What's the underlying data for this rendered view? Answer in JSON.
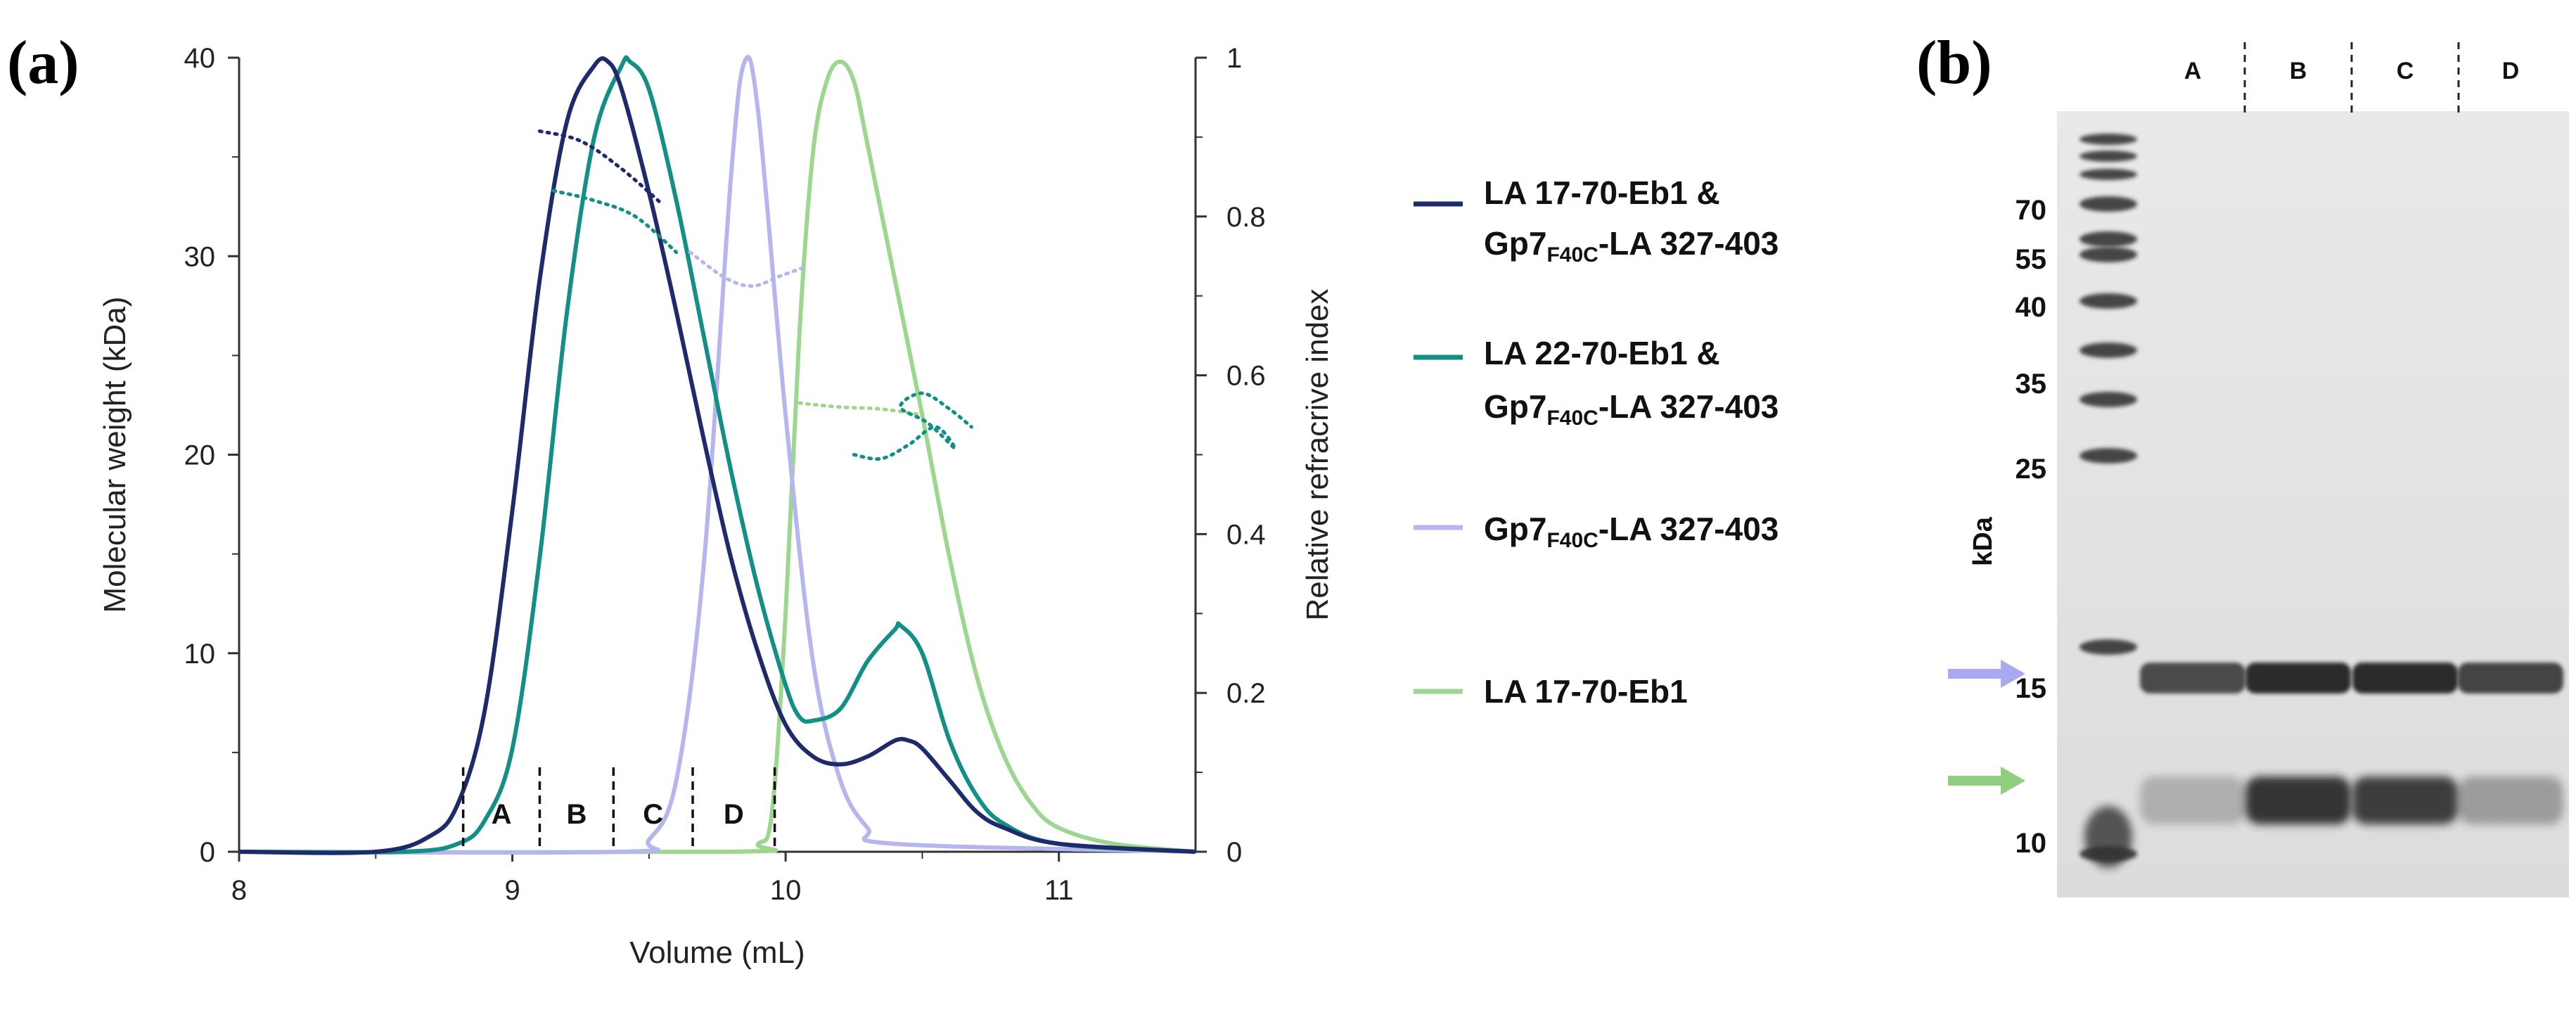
{
  "panel_a": {
    "label": "(a)"
  },
  "panel_b": {
    "label": "(b)"
  },
  "chart_data": [
    {
      "type": "line",
      "title": "",
      "xlabel": "Volume (mL)",
      "ylabel": "Molecular weight (kDa)",
      "y2label": "Relative refracrive index",
      "xlim": [
        8,
        11.5
      ],
      "ylim": [
        0,
        40
      ],
      "y2lim": [
        0,
        1
      ],
      "xticks": [
        "8",
        "9",
        "10",
        "11"
      ],
      "yticks": [
        "0",
        "10",
        "20",
        "30",
        "40"
      ],
      "y2ticks": [
        "0",
        "0.2",
        "0.4",
        "0.6",
        "0.8",
        "1"
      ],
      "fractions": [
        {
          "label": "A",
          "from": 8.82,
          "to": 9.1
        },
        {
          "label": "B",
          "from": 9.1,
          "to": 9.37
        },
        {
          "label": "C",
          "from": 9.37,
          "to": 9.66
        },
        {
          "label": "D",
          "from": 9.66,
          "to": 9.96
        }
      ],
      "series": [
        {
          "name": "LA 17-70-Eb1 & Gp7F40C-LA 327-403",
          "legend_main": "LA 17-70-Eb1 &",
          "legend_prefix": "Gp7",
          "legend_sub": "F40C",
          "legend_suffix": "-LA 327-403",
          "color": "#1f2a6b",
          "ri_points": [
            [
              8,
              0
            ],
            [
              8.5,
              0
            ],
            [
              8.7,
              0.02
            ],
            [
              8.8,
              0.06
            ],
            [
              8.9,
              0.18
            ],
            [
              9.0,
              0.43
            ],
            [
              9.1,
              0.72
            ],
            [
              9.2,
              0.92
            ],
            [
              9.3,
              0.99
            ],
            [
              9.35,
              0.995
            ],
            [
              9.4,
              0.96
            ],
            [
              9.5,
              0.83
            ],
            [
              9.6,
              0.68
            ],
            [
              9.7,
              0.52
            ],
            [
              9.8,
              0.37
            ],
            [
              9.9,
              0.25
            ],
            [
              10.0,
              0.16
            ],
            [
              10.1,
              0.12
            ],
            [
              10.2,
              0.11
            ],
            [
              10.3,
              0.12
            ],
            [
              10.4,
              0.14
            ],
            [
              10.45,
              0.14
            ],
            [
              10.5,
              0.13
            ],
            [
              10.6,
              0.09
            ],
            [
              10.7,
              0.05
            ],
            [
              10.8,
              0.03
            ],
            [
              11.0,
              0.01
            ],
            [
              11.5,
              0.0
            ]
          ],
          "mw_points": [
            [
              9.1,
              36.3
            ],
            [
              9.25,
              35.8
            ],
            [
              9.4,
              34.4
            ],
            [
              9.55,
              32.6
            ]
          ]
        },
        {
          "name": "LA 22-70-Eb1 & Gp7F40C-LA 327-403",
          "legend_main": "LA 22-70-Eb1 &",
          "legend_prefix": "Gp7",
          "legend_sub": "F40C",
          "legend_suffix": "-LA 327-403",
          "color": "#138f86",
          "ri_points": [
            [
              8,
              0
            ],
            [
              8.6,
              0
            ],
            [
              8.8,
              0.01
            ],
            [
              8.9,
              0.04
            ],
            [
              9.0,
              0.13
            ],
            [
              9.1,
              0.37
            ],
            [
              9.2,
              0.68
            ],
            [
              9.3,
              0.9
            ],
            [
              9.4,
              0.99
            ],
            [
              9.43,
              0.995
            ],
            [
              9.5,
              0.96
            ],
            [
              9.6,
              0.82
            ],
            [
              9.7,
              0.65
            ],
            [
              9.8,
              0.48
            ],
            [
              9.9,
              0.33
            ],
            [
              10.0,
              0.21
            ],
            [
              10.05,
              0.17
            ],
            [
              10.1,
              0.165
            ],
            [
              10.2,
              0.18
            ],
            [
              10.3,
              0.24
            ],
            [
              10.4,
              0.28
            ],
            [
              10.42,
              0.285
            ],
            [
              10.5,
              0.25
            ],
            [
              10.6,
              0.14
            ],
            [
              10.7,
              0.07
            ],
            [
              10.8,
              0.035
            ],
            [
              11.0,
              0.01
            ],
            [
              11.5,
              0.0
            ]
          ],
          "mw_points": [
            [
              9.15,
              33.3
            ],
            [
              9.3,
              32.8
            ],
            [
              9.45,
              32.0
            ],
            [
              9.6,
              30.2
            ]
          ],
          "mw_points_2": [
            [
              10.25,
              20.0
            ],
            [
              10.35,
              19.8
            ],
            [
              10.45,
              20.5
            ],
            [
              10.55,
              21.4
            ],
            [
              10.62,
              20.3
            ],
            [
              10.52,
              21.6
            ],
            [
              10.42,
              22.4
            ],
            [
              10.5,
              23.1
            ],
            [
              10.6,
              22.3
            ],
            [
              10.68,
              21.4
            ]
          ]
        },
        {
          "name": "Gp7F40C-LA 327-403",
          "legend_main": "",
          "legend_prefix": "Gp7",
          "legend_sub": "F40C",
          "legend_suffix": "-LA 327-403",
          "color": "#b6b6ef",
          "ri_points": [
            [
              8,
              0
            ],
            [
              9.4,
              0
            ],
            [
              9.5,
              0.015
            ],
            [
              9.6,
              0.09
            ],
            [
              9.7,
              0.36
            ],
            [
              9.8,
              0.85
            ],
            [
              9.85,
              0.995
            ],
            [
              9.9,
              0.93
            ],
            [
              10.0,
              0.55
            ],
            [
              10.1,
              0.24
            ],
            [
              10.2,
              0.09
            ],
            [
              10.3,
              0.03
            ],
            [
              10.4,
              0.01
            ],
            [
              11.5,
              0.0
            ]
          ],
          "mw_points": [
            [
              9.65,
              30.2
            ],
            [
              9.78,
              28.9
            ],
            [
              9.88,
              28.5
            ],
            [
              9.98,
              29.0
            ],
            [
              10.08,
              29.5
            ]
          ]
        },
        {
          "name": "LA 17-70-Eb1",
          "legend_main": "LA 17-70-Eb1",
          "legend_prefix": "",
          "legend_sub": "",
          "legend_suffix": "",
          "color": "#9dd68f",
          "ri_points": [
            [
              8,
              0
            ],
            [
              9.8,
              0
            ],
            [
              9.9,
              0.01
            ],
            [
              9.95,
              0.05
            ],
            [
              10.0,
              0.3
            ],
            [
              10.05,
              0.65
            ],
            [
              10.1,
              0.88
            ],
            [
              10.15,
              0.97
            ],
            [
              10.2,
              0.995
            ],
            [
              10.25,
              0.97
            ],
            [
              10.3,
              0.89
            ],
            [
              10.4,
              0.72
            ],
            [
              10.5,
              0.55
            ],
            [
              10.6,
              0.37
            ],
            [
              10.7,
              0.22
            ],
            [
              10.8,
              0.12
            ],
            [
              10.9,
              0.06
            ],
            [
              11.0,
              0.03
            ],
            [
              11.2,
              0.01
            ],
            [
              11.5,
              0.0
            ]
          ],
          "mw_points": [
            [
              10.05,
              22.6
            ],
            [
              10.2,
              22.4
            ],
            [
              10.35,
              22.3
            ],
            [
              10.5,
              22.0
            ]
          ]
        }
      ]
    },
    {
      "type": "gel",
      "ylabel": "kDa",
      "lanes": [
        "A",
        "B",
        "C",
        "D"
      ],
      "markers": [
        "70",
        "55",
        "40",
        "35",
        "25",
        "15",
        "10"
      ],
      "upper_band_intensity": [
        0.78,
        0.95,
        0.95,
        0.82
      ],
      "lower_band_intensity": [
        0.25,
        0.9,
        0.85,
        0.35
      ],
      "arrows": [
        {
          "target": "upper band",
          "color": "#a9a9f0"
        },
        {
          "target": "lower band",
          "color": "#8fcf7f"
        }
      ]
    }
  ]
}
